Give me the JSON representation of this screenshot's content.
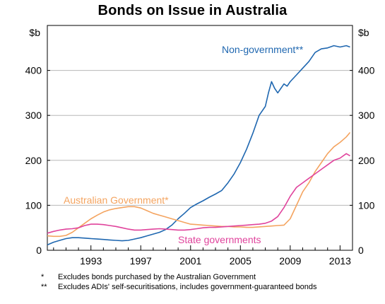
{
  "chart_data": {
    "type": "line",
    "title": "Bonds on Issue in Australia",
    "y_unit_left": "$b",
    "y_unit_right": "$b",
    "ylim": [
      0,
      500
    ],
    "yticks": [
      0,
      100,
      200,
      300,
      400
    ],
    "y_tick_labels": [
      "0",
      "100",
      "200",
      "300",
      "400"
    ],
    "xlim": [
      1989.5,
      2014.0
    ],
    "xticks": [
      1993,
      1997,
      2001,
      2005,
      2009,
      2013
    ],
    "x_tick_labels": [
      "1993",
      "1997",
      "2001",
      "2005",
      "2009",
      "2013"
    ],
    "grid": "horizontal",
    "series": [
      {
        "name": "Non-government**",
        "color": "#1f67b0",
        "points": [
          [
            1989.5,
            12
          ],
          [
            1990,
            18
          ],
          [
            1990.5,
            22
          ],
          [
            1991,
            26
          ],
          [
            1991.5,
            28
          ],
          [
            1992,
            28
          ],
          [
            1992.5,
            27
          ],
          [
            1993,
            26
          ],
          [
            1993.5,
            25
          ],
          [
            1994,
            24
          ],
          [
            1994.5,
            23
          ],
          [
            1995,
            22
          ],
          [
            1995.5,
            21
          ],
          [
            1996,
            22
          ],
          [
            1996.5,
            25
          ],
          [
            1997,
            28
          ],
          [
            1997.5,
            32
          ],
          [
            1998,
            36
          ],
          [
            1998.5,
            40
          ],
          [
            1999,
            46
          ],
          [
            1999.5,
            56
          ],
          [
            2000,
            70
          ],
          [
            2000.5,
            82
          ],
          [
            2001,
            95
          ],
          [
            2001.5,
            103
          ],
          [
            2002,
            110
          ],
          [
            2002.5,
            118
          ],
          [
            2003,
            125
          ],
          [
            2003.5,
            133
          ],
          [
            2004,
            150
          ],
          [
            2004.5,
            170
          ],
          [
            2005,
            195
          ],
          [
            2005.5,
            225
          ],
          [
            2006,
            260
          ],
          [
            2006.5,
            300
          ],
          [
            2007,
            320
          ],
          [
            2007.25,
            350
          ],
          [
            2007.5,
            375
          ],
          [
            2007.75,
            360
          ],
          [
            2008,
            350
          ],
          [
            2008.25,
            360
          ],
          [
            2008.5,
            370
          ],
          [
            2008.75,
            365
          ],
          [
            2009,
            375
          ],
          [
            2009.5,
            390
          ],
          [
            2010,
            405
          ],
          [
            2010.5,
            420
          ],
          [
            2011,
            440
          ],
          [
            2011.5,
            448
          ],
          [
            2012,
            450
          ],
          [
            2012.5,
            455
          ],
          [
            2013,
            452
          ],
          [
            2013.5,
            455
          ],
          [
            2013.8,
            452
          ]
        ]
      },
      {
        "name": "Australian Government*",
        "color": "#f4a460",
        "points": [
          [
            1989.5,
            32
          ],
          [
            1990,
            31
          ],
          [
            1990.5,
            31
          ],
          [
            1991,
            33
          ],
          [
            1991.5,
            40
          ],
          [
            1992,
            50
          ],
          [
            1992.5,
            60
          ],
          [
            1993,
            70
          ],
          [
            1993.5,
            78
          ],
          [
            1994,
            85
          ],
          [
            1994.5,
            90
          ],
          [
            1995,
            93
          ],
          [
            1995.5,
            95
          ],
          [
            1996,
            97
          ],
          [
            1996.5,
            97
          ],
          [
            1997,
            94
          ],
          [
            1997.5,
            88
          ],
          [
            1998,
            82
          ],
          [
            1998.5,
            78
          ],
          [
            1999,
            74
          ],
          [
            1999.5,
            70
          ],
          [
            2000,
            66
          ],
          [
            2000.5,
            62
          ],
          [
            2001,
            58
          ],
          [
            2001.5,
            57
          ],
          [
            2002,
            56
          ],
          [
            2002.5,
            55
          ],
          [
            2003,
            54
          ],
          [
            2003.5,
            53
          ],
          [
            2004,
            53
          ],
          [
            2004.5,
            52
          ],
          [
            2005,
            52
          ],
          [
            2005.5,
            51
          ],
          [
            2006,
            51
          ],
          [
            2006.5,
            52
          ],
          [
            2007,
            53
          ],
          [
            2007.5,
            54
          ],
          [
            2008,
            55
          ],
          [
            2008.5,
            56
          ],
          [
            2009,
            70
          ],
          [
            2009.5,
            100
          ],
          [
            2010,
            130
          ],
          [
            2010.5,
            150
          ],
          [
            2011,
            175
          ],
          [
            2011.5,
            195
          ],
          [
            2012,
            215
          ],
          [
            2012.5,
            230
          ],
          [
            2013,
            240
          ],
          [
            2013.5,
            252
          ],
          [
            2013.8,
            262
          ]
        ]
      },
      {
        "name": "State governments",
        "color": "#e0439c",
        "points": [
          [
            1989.5,
            38
          ],
          [
            1990,
            42
          ],
          [
            1990.5,
            45
          ],
          [
            1991,
            47
          ],
          [
            1991.5,
            48
          ],
          [
            1992,
            50
          ],
          [
            1992.5,
            55
          ],
          [
            1993,
            58
          ],
          [
            1993.5,
            58
          ],
          [
            1994,
            57
          ],
          [
            1994.5,
            55
          ],
          [
            1995,
            53
          ],
          [
            1995.5,
            50
          ],
          [
            1996,
            47
          ],
          [
            1996.5,
            45
          ],
          [
            1997,
            45
          ],
          [
            1997.5,
            46
          ],
          [
            1998,
            47
          ],
          [
            1998.5,
            48
          ],
          [
            1999,
            47
          ],
          [
            1999.5,
            46
          ],
          [
            2000,
            45
          ],
          [
            2000.5,
            45
          ],
          [
            2001,
            46
          ],
          [
            2001.5,
            48
          ],
          [
            2002,
            50
          ],
          [
            2002.5,
            51
          ],
          [
            2003,
            51
          ],
          [
            2003.5,
            52
          ],
          [
            2004,
            53
          ],
          [
            2004.5,
            54
          ],
          [
            2005,
            55
          ],
          [
            2005.5,
            56
          ],
          [
            2006,
            57
          ],
          [
            2006.5,
            58
          ],
          [
            2007,
            60
          ],
          [
            2007.5,
            65
          ],
          [
            2008,
            75
          ],
          [
            2008.5,
            95
          ],
          [
            2009,
            120
          ],
          [
            2009.5,
            140
          ],
          [
            2010,
            150
          ],
          [
            2010.5,
            160
          ],
          [
            2011,
            170
          ],
          [
            2011.5,
            180
          ],
          [
            2012,
            190
          ],
          [
            2012.5,
            200
          ],
          [
            2013,
            205
          ],
          [
            2013.5,
            215
          ],
          [
            2013.8,
            210
          ]
        ]
      }
    ],
    "annotations": [
      {
        "text": "Non-government**",
        "color": "#1f67b0"
      },
      {
        "text": "Australian Government*",
        "color": "#f4a460"
      },
      {
        "text": "State governments",
        "color": "#e0439c"
      }
    ]
  },
  "footnotes": [
    {
      "mark": "*",
      "text": "Excludes bonds purchased by the Australian Government"
    },
    {
      "mark": "**",
      "text": "Excludes ADIs' self-securitisations, includes government-guaranteed bonds"
    }
  ]
}
